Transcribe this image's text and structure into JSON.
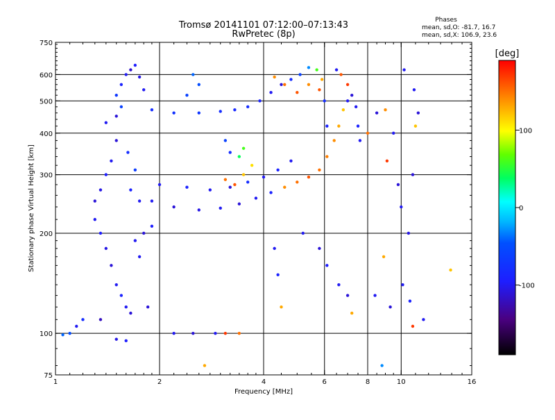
{
  "header": {
    "title_line1": "Tromsø 20141101 07:12:00–07:13:43",
    "title_line2": "RwPretec (8p)",
    "phase_title": "Phases",
    "phase_o": "mean, sd,O: -81.7, 16.7",
    "phase_x": "mean, sd,X: 106.9, 23.6"
  },
  "colorbar": {
    "unit_label": "[deg]",
    "ticks": [
      "100",
      "0",
      "-100"
    ],
    "tick_values": [
      100,
      0,
      -100
    ],
    "range": [
      -190,
      190
    ]
  },
  "chart_data": {
    "type": "scatter",
    "xlabel": "Frequency [MHz]",
    "ylabel": "Stationary phase Virtual Height [km]",
    "x_scale": "log",
    "y_scale": "log",
    "xlim": [
      1,
      16
    ],
    "ylim": [
      75,
      750
    ],
    "x_ticks": [
      {
        "value": 1,
        "label": "1"
      },
      {
        "value": 2,
        "label": "2"
      },
      {
        "value": 4,
        "label": "4"
      },
      {
        "value": 6,
        "label": "6"
      },
      {
        "value": 8,
        "label": "8"
      },
      {
        "value": 10,
        "label": "10"
      },
      {
        "value": 16,
        "label": "16"
      }
    ],
    "y_ticks": [
      {
        "value": 75,
        "label": "75"
      },
      {
        "value": 100,
        "label": "100"
      },
      {
        "value": 200,
        "label": "200"
      },
      {
        "value": 300,
        "label": "300"
      },
      {
        "value": 400,
        "label": "400"
      },
      {
        "value": 500,
        "label": "500"
      },
      {
        "value": 600,
        "label": "600"
      },
      {
        "value": 750,
        "label": "750"
      }
    ],
    "grid_x": [
      2,
      4,
      6,
      8,
      10
    ],
    "grid_y": [
      100,
      200,
      300,
      400,
      500,
      600
    ],
    "grid": true,
    "point_color_by": "phase [deg]",
    "series": [
      {
        "points": [
          [
            1.4,
            430,
            -100
          ],
          [
            1.5,
            450,
            -110
          ],
          [
            1.55,
            560,
            -90
          ],
          [
            1.6,
            600,
            -100
          ],
          [
            1.65,
            620,
            -115
          ],
          [
            1.7,
            640,
            -95
          ],
          [
            1.75,
            590,
            -105
          ],
          [
            1.8,
            540,
            -100
          ],
          [
            1.5,
            380,
            -110
          ],
          [
            1.45,
            330,
            -100
          ],
          [
            1.4,
            300,
            -95
          ],
          [
            1.35,
            270,
            -105
          ],
          [
            1.3,
            250,
            -110
          ],
          [
            1.3,
            220,
            -100
          ],
          [
            1.35,
            200,
            -95
          ],
          [
            1.4,
            180,
            -105
          ],
          [
            1.45,
            160,
            -110
          ],
          [
            1.5,
            140,
            -100
          ],
          [
            1.55,
            130,
            -90
          ],
          [
            1.6,
            120,
            -100
          ],
          [
            1.65,
            115,
            -110
          ],
          [
            1.35,
            110,
            -120
          ],
          [
            1.5,
            96,
            -105
          ],
          [
            1.6,
            95,
            -95
          ],
          [
            1.7,
            190,
            -100
          ],
          [
            1.8,
            200,
            -110
          ],
          [
            1.9,
            210,
            -95
          ],
          [
            1.75,
            170,
            -100
          ],
          [
            1.85,
            120,
            -110
          ],
          [
            1.55,
            480,
            -60
          ],
          [
            1.5,
            520,
            -70
          ],
          [
            1.62,
            350,
            -80
          ],
          [
            1.7,
            310,
            -65
          ],
          [
            1.65,
            270,
            -90
          ],
          [
            1.75,
            250,
            -100
          ]
        ]
      },
      {
        "points": [
          [
            1.9,
            470,
            -80
          ],
          [
            2.2,
            460,
            -75
          ],
          [
            2.6,
            460,
            -70
          ],
          [
            3.0,
            465,
            -80
          ],
          [
            3.3,
            470,
            -85
          ],
          [
            3.6,
            480,
            -80
          ],
          [
            3.9,
            500,
            -90
          ],
          [
            4.2,
            530,
            -100
          ],
          [
            4.5,
            560,
            -110
          ],
          [
            4.8,
            580,
            -80
          ],
          [
            5.1,
            600,
            -60
          ],
          [
            5.4,
            630,
            -30
          ],
          [
            5.7,
            620,
            60
          ],
          [
            5.9,
            580,
            130
          ],
          [
            6.0,
            500,
            -80
          ],
          [
            6.1,
            420,
            -90
          ],
          [
            2.5,
            600,
            -40
          ],
          [
            2.6,
            560,
            -50
          ],
          [
            2.4,
            520,
            -60
          ]
        ]
      },
      {
        "points": [
          [
            1.9,
            250,
            -100
          ],
          [
            2.2,
            240,
            -110
          ],
          [
            2.6,
            235,
            -105
          ],
          [
            3.0,
            238,
            -100
          ],
          [
            3.4,
            245,
            -110
          ],
          [
            3.8,
            255,
            -100
          ],
          [
            4.2,
            265,
            -90
          ],
          [
            4.6,
            275,
            140
          ],
          [
            5.0,
            285,
            150
          ],
          [
            5.4,
            295,
            160
          ],
          [
            5.8,
            310,
            150
          ],
          [
            6.1,
            340,
            145
          ],
          [
            6.4,
            380,
            140
          ],
          [
            6.6,
            420,
            130
          ],
          [
            6.8,
            470,
            120
          ],
          [
            7.0,
            500,
            -100
          ],
          [
            2.0,
            280,
            -100
          ],
          [
            2.4,
            275,
            -90
          ],
          [
            2.8,
            270,
            -100
          ],
          [
            3.2,
            275,
            -110
          ],
          [
            3.6,
            285,
            -80
          ],
          [
            4.0,
            295,
            -100
          ],
          [
            4.4,
            310,
            -90
          ],
          [
            4.8,
            330,
            -100
          ],
          [
            3.1,
            290,
            150
          ],
          [
            3.3,
            280,
            160
          ],
          [
            3.5,
            300,
            120
          ],
          [
            3.7,
            320,
            110
          ],
          [
            3.2,
            350,
            -80
          ],
          [
            3.1,
            380,
            -60
          ],
          [
            3.5,
            360,
            60
          ],
          [
            3.4,
            340,
            40
          ],
          [
            4.3,
            590,
            140
          ],
          [
            4.6,
            560,
            150
          ],
          [
            5.0,
            530,
            160
          ],
          [
            5.4,
            560,
            140
          ],
          [
            5.8,
            540,
            160
          ]
        ]
      },
      {
        "points": [
          [
            6.5,
            620,
            -100
          ],
          [
            6.7,
            600,
            160
          ],
          [
            7.0,
            560,
            170
          ],
          [
            7.2,
            520,
            -110
          ],
          [
            7.4,
            480,
            -100
          ],
          [
            7.5,
            420,
            -90
          ],
          [
            7.6,
            380,
            -100
          ],
          [
            8.0,
            400,
            150
          ],
          [
            8.5,
            460,
            -110
          ],
          [
            9.0,
            470,
            140
          ],
          [
            9.5,
            400,
            -100
          ],
          [
            9.1,
            330,
            170
          ],
          [
            9.8,
            280,
            -110
          ],
          [
            10.0,
            240,
            -100
          ],
          [
            10.5,
            200,
            -105
          ],
          [
            10.8,
            300,
            -110
          ],
          [
            11.0,
            420,
            120
          ],
          [
            11.2,
            460,
            -110
          ],
          [
            10.2,
            620,
            -100
          ],
          [
            10.9,
            540,
            -100
          ],
          [
            4.3,
            180,
            -100
          ],
          [
            4.4,
            150,
            -90
          ],
          [
            4.5,
            120,
            130
          ],
          [
            5.2,
            200,
            -100
          ],
          [
            5.8,
            180,
            -110
          ],
          [
            6.1,
            160,
            -95
          ],
          [
            6.6,
            140,
            -100
          ],
          [
            7.0,
            130,
            -110
          ],
          [
            7.2,
            115,
            130
          ],
          [
            8.4,
            130,
            -100
          ],
          [
            8.9,
            170,
            130
          ],
          [
            9.3,
            120,
            -110
          ],
          [
            10.1,
            140,
            -100
          ],
          [
            10.6,
            125,
            -90
          ],
          [
            10.8,
            105,
            170
          ],
          [
            11.6,
            110,
            -100
          ],
          [
            13.9,
            155,
            120
          ],
          [
            8.8,
            80,
            -30
          ],
          [
            2.2,
            100,
            -100
          ],
          [
            2.5,
            100,
            -110
          ],
          [
            2.9,
            100,
            -100
          ],
          [
            3.1,
            100,
            170
          ],
          [
            3.4,
            100,
            150
          ],
          [
            2.7,
            80,
            130
          ],
          [
            1.05,
            99,
            -40
          ],
          [
            1.1,
            100,
            -50
          ],
          [
            1.15,
            105,
            -100
          ],
          [
            1.2,
            110,
            -80
          ]
        ]
      }
    ]
  }
}
